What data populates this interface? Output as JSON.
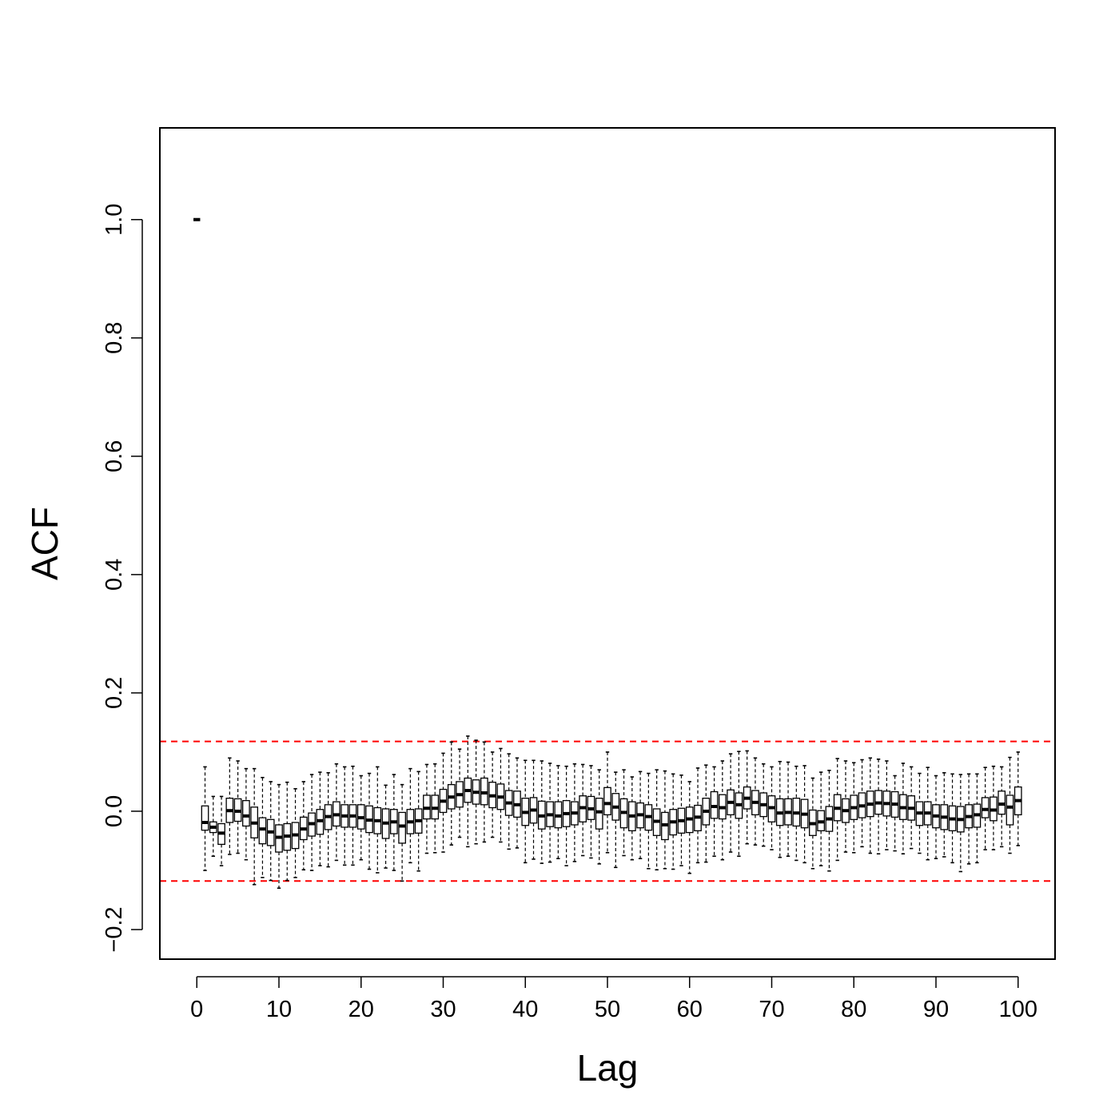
{
  "chart_data": {
    "type": "boxplot",
    "title": "",
    "xlabel": "Lag",
    "ylabel": "ACF",
    "xlim": [
      -4.5,
      104.5
    ],
    "ylim": [
      -0.25,
      1.155
    ],
    "x_ticks": [
      0,
      10,
      20,
      30,
      40,
      50,
      60,
      70,
      80,
      90,
      100
    ],
    "x_tick_labels": [
      "0",
      "10",
      "20",
      "30",
      "40",
      "50",
      "60",
      "70",
      "80",
      "90",
      "100"
    ],
    "y_ticks": [
      -0.2,
      0.0,
      0.2,
      0.4,
      0.6,
      0.8,
      1.0
    ],
    "y_tick_labels": [
      "−0.2",
      "0.0",
      "0.2",
      "0.4",
      "0.6",
      "0.8",
      "1.0"
    ],
    "grid": false,
    "confidence_bounds": {
      "values": [
        0.118,
        -0.118
      ],
      "color": "#ff0000",
      "style": "dashed"
    },
    "box_color": "#000000",
    "lags": [
      0,
      1,
      2,
      3,
      4,
      5,
      6,
      7,
      8,
      9,
      10,
      11,
      12,
      13,
      14,
      15,
      16,
      17,
      18,
      19,
      20,
      21,
      22,
      23,
      24,
      25,
      26,
      27,
      28,
      29,
      30,
      31,
      32,
      33,
      34,
      35,
      36,
      37,
      38,
      39,
      40,
      41,
      42,
      43,
      44,
      45,
      46,
      47,
      48,
      49,
      50,
      51,
      52,
      53,
      54,
      55,
      56,
      57,
      58,
      59,
      60,
      61,
      62,
      63,
      64,
      65,
      66,
      67,
      68,
      69,
      70,
      71,
      72,
      73,
      74,
      75,
      76,
      77,
      78,
      79,
      80,
      81,
      82,
      83,
      84,
      85,
      86,
      87,
      88,
      89,
      90,
      91,
      92,
      93,
      94,
      95,
      96,
      97,
      98,
      99,
      100
    ],
    "medians": [
      1.0,
      -0.019,
      -0.027,
      -0.037,
      0.001,
      0.0,
      -0.008,
      -0.02,
      -0.03,
      -0.035,
      -0.044,
      -0.042,
      -0.04,
      -0.03,
      -0.021,
      -0.016,
      -0.009,
      -0.006,
      -0.008,
      -0.008,
      -0.011,
      -0.015,
      -0.016,
      -0.02,
      -0.018,
      -0.025,
      -0.018,
      -0.016,
      0.005,
      0.005,
      0.017,
      0.024,
      0.028,
      0.035,
      0.032,
      0.031,
      0.026,
      0.024,
      0.014,
      0.011,
      -0.002,
      0.002,
      -0.008,
      -0.006,
      -0.008,
      -0.004,
      -0.003,
      0.006,
      0.004,
      -0.001,
      0.013,
      0.007,
      -0.002,
      -0.008,
      -0.006,
      -0.009,
      -0.017,
      -0.023,
      -0.018,
      -0.016,
      -0.013,
      -0.01,
      0.0,
      0.008,
      0.006,
      0.015,
      0.011,
      0.022,
      0.015,
      0.011,
      0.006,
      -0.003,
      -0.002,
      -0.003,
      -0.005,
      -0.021,
      -0.018,
      -0.013,
      0.005,
      0.001,
      0.006,
      0.009,
      0.012,
      0.014,
      0.013,
      0.012,
      0.006,
      0.005,
      -0.003,
      -0.003,
      -0.008,
      -0.01,
      -0.013,
      -0.014,
      -0.009,
      -0.006,
      0.003,
      0.002,
      0.012,
      0.007,
      0.018
    ],
    "q1": [
      1.0,
      -0.032,
      -0.036,
      -0.056,
      -0.019,
      -0.017,
      -0.025,
      -0.045,
      -0.055,
      -0.058,
      -0.069,
      -0.066,
      -0.063,
      -0.048,
      -0.042,
      -0.039,
      -0.031,
      -0.025,
      -0.027,
      -0.027,
      -0.03,
      -0.036,
      -0.038,
      -0.046,
      -0.038,
      -0.054,
      -0.038,
      -0.037,
      -0.013,
      -0.013,
      -0.002,
      0.004,
      0.007,
      0.015,
      0.012,
      0.011,
      0.006,
      0.003,
      -0.007,
      -0.01,
      -0.024,
      -0.02,
      -0.03,
      -0.026,
      -0.028,
      -0.026,
      -0.023,
      -0.018,
      -0.014,
      -0.03,
      -0.006,
      -0.015,
      -0.028,
      -0.033,
      -0.028,
      -0.032,
      -0.041,
      -0.048,
      -0.04,
      -0.037,
      -0.036,
      -0.033,
      -0.023,
      -0.012,
      -0.013,
      -0.006,
      -0.012,
      0.004,
      -0.006,
      -0.009,
      -0.018,
      -0.024,
      -0.023,
      -0.025,
      -0.028,
      -0.041,
      -0.033,
      -0.034,
      -0.016,
      -0.019,
      -0.014,
      -0.011,
      -0.009,
      -0.005,
      -0.008,
      -0.01,
      -0.014,
      -0.015,
      -0.024,
      -0.023,
      -0.028,
      -0.031,
      -0.033,
      -0.035,
      -0.028,
      -0.027,
      -0.011,
      -0.016,
      -0.005,
      -0.023,
      -0.006
    ],
    "q3": [
      1.0,
      0.009,
      -0.018,
      -0.021,
      0.022,
      0.021,
      0.018,
      0.007,
      -0.011,
      -0.014,
      -0.023,
      -0.021,
      -0.019,
      -0.01,
      -0.003,
      0.003,
      0.011,
      0.016,
      0.011,
      0.011,
      0.011,
      0.009,
      0.006,
      0.004,
      0.003,
      -0.002,
      0.003,
      0.004,
      0.027,
      0.027,
      0.037,
      0.045,
      0.05,
      0.056,
      0.053,
      0.056,
      0.049,
      0.046,
      0.035,
      0.034,
      0.022,
      0.023,
      0.017,
      0.016,
      0.016,
      0.018,
      0.016,
      0.026,
      0.025,
      0.022,
      0.04,
      0.03,
      0.021,
      0.016,
      0.014,
      0.011,
      0.004,
      -0.002,
      0.003,
      0.005,
      0.007,
      0.01,
      0.022,
      0.033,
      0.028,
      0.036,
      0.031,
      0.041,
      0.035,
      0.031,
      0.026,
      0.021,
      0.021,
      0.022,
      0.02,
      0.002,
      0.001,
      0.008,
      0.028,
      0.021,
      0.027,
      0.031,
      0.034,
      0.035,
      0.034,
      0.033,
      0.028,
      0.026,
      0.016,
      0.016,
      0.011,
      0.011,
      0.009,
      0.008,
      0.011,
      0.012,
      0.023,
      0.024,
      0.034,
      0.027,
      0.041
    ],
    "whisker_low": [
      1.0,
      -0.1,
      -0.076,
      -0.092,
      -0.073,
      -0.071,
      -0.082,
      -0.124,
      -0.112,
      -0.117,
      -0.13,
      -0.117,
      -0.112,
      -0.099,
      -0.1,
      -0.092,
      -0.094,
      -0.083,
      -0.091,
      -0.091,
      -0.082,
      -0.098,
      -0.104,
      -0.096,
      -0.1,
      -0.118,
      -0.087,
      -0.101,
      -0.071,
      -0.07,
      -0.069,
      -0.057,
      -0.044,
      -0.06,
      -0.055,
      -0.052,
      -0.044,
      -0.052,
      -0.064,
      -0.062,
      -0.087,
      -0.081,
      -0.088,
      -0.086,
      -0.08,
      -0.092,
      -0.085,
      -0.075,
      -0.079,
      -0.089,
      -0.07,
      -0.095,
      -0.075,
      -0.082,
      -0.08,
      -0.097,
      -0.099,
      -0.097,
      -0.098,
      -0.092,
      -0.105,
      -0.087,
      -0.086,
      -0.076,
      -0.082,
      -0.069,
      -0.076,
      -0.055,
      -0.057,
      -0.059,
      -0.065,
      -0.078,
      -0.076,
      -0.083,
      -0.087,
      -0.097,
      -0.092,
      -0.101,
      -0.083,
      -0.069,
      -0.07,
      -0.06,
      -0.071,
      -0.072,
      -0.065,
      -0.067,
      -0.072,
      -0.063,
      -0.071,
      -0.082,
      -0.08,
      -0.077,
      -0.087,
      -0.102,
      -0.089,
      -0.087,
      -0.065,
      -0.065,
      -0.06,
      -0.071,
      -0.058
    ],
    "whisker_high": [
      1.0,
      0.075,
      0.025,
      0.025,
      0.09,
      0.085,
      0.072,
      0.072,
      0.057,
      0.05,
      0.045,
      0.049,
      0.038,
      0.05,
      0.062,
      0.066,
      0.065,
      0.08,
      0.075,
      0.076,
      0.06,
      0.064,
      0.075,
      0.044,
      0.062,
      0.045,
      0.072,
      0.067,
      0.079,
      0.08,
      0.098,
      0.117,
      0.105,
      0.127,
      0.12,
      0.117,
      0.1,
      0.106,
      0.097,
      0.09,
      0.086,
      0.086,
      0.085,
      0.081,
      0.077,
      0.076,
      0.08,
      0.079,
      0.077,
      0.07,
      0.1,
      0.066,
      0.07,
      0.058,
      0.067,
      0.064,
      0.07,
      0.068,
      0.063,
      0.061,
      0.05,
      0.073,
      0.078,
      0.075,
      0.085,
      0.097,
      0.101,
      0.102,
      0.09,
      0.08,
      0.075,
      0.084,
      0.083,
      0.076,
      0.077,
      0.056,
      0.066,
      0.069,
      0.089,
      0.085,
      0.082,
      0.087,
      0.09,
      0.088,
      0.085,
      0.06,
      0.081,
      0.075,
      0.064,
      0.074,
      0.06,
      0.065,
      0.063,
      0.062,
      0.063,
      0.063,
      0.074,
      0.076,
      0.075,
      0.091,
      0.1
    ]
  }
}
